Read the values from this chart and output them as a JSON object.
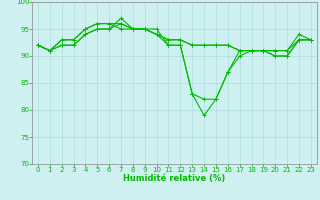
{
  "xlabel": "Humidité relative (%)",
  "xlim": [
    -0.5,
    23.5
  ],
  "ylim": [
    70,
    100
  ],
  "yticks": [
    70,
    75,
    80,
    85,
    90,
    95,
    100
  ],
  "xticks": [
    0,
    1,
    2,
    3,
    4,
    5,
    6,
    7,
    8,
    9,
    10,
    11,
    12,
    13,
    14,
    15,
    16,
    17,
    18,
    19,
    20,
    21,
    22,
    23
  ],
  "background_color": "#cff0f0",
  "grid_color": "#aadddd",
  "line_color": "#00bb00",
  "lines": [
    [
      92,
      91,
      92,
      92,
      94,
      95,
      95,
      97,
      95,
      95,
      95,
      92,
      92,
      83,
      79,
      82,
      87,
      90,
      91,
      91,
      90,
      90,
      93,
      93
    ],
    [
      92,
      91,
      92,
      92,
      94,
      95,
      95,
      96,
      95,
      95,
      94,
      92,
      92,
      83,
      82,
      82,
      87,
      91,
      91,
      91,
      90,
      90,
      93,
      93
    ],
    [
      92,
      91,
      93,
      93,
      95,
      96,
      96,
      96,
      95,
      95,
      94,
      93,
      93,
      92,
      92,
      92,
      92,
      91,
      91,
      91,
      91,
      91,
      93,
      93
    ],
    [
      92,
      91,
      93,
      93,
      95,
      96,
      96,
      95,
      95,
      95,
      94,
      93,
      93,
      92,
      92,
      92,
      92,
      91,
      91,
      91,
      91,
      91,
      94,
      93
    ]
  ],
  "tick_fontsize": 5,
  "xlabel_fontsize": 6
}
